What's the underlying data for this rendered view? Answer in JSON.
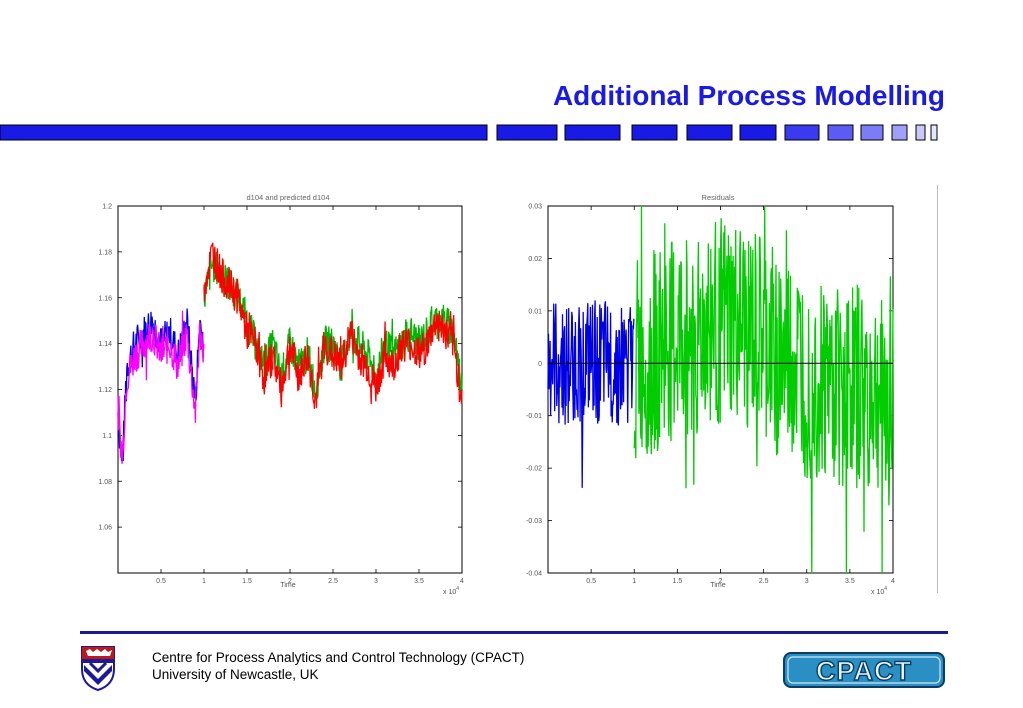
{
  "slide": {
    "title": "Additional Process Modelling",
    "footer_line1": "Centre for Process Analytics and Control Technology   (CPACT)",
    "footer_line2": "University of Newcastle, UK",
    "logo_text": "CPACT",
    "crest_icon": "university-crest-icon",
    "colors": {
      "title": "#1a1ae6",
      "bar": "#1a1ae6",
      "footer_rule": "#1a1a9a",
      "logo": "#2a8fc2"
    }
  },
  "chart_data": [
    {
      "type": "line",
      "title": "d104 and predicted d104",
      "xlabel": "Time",
      "x_multiplier": "x 10^4",
      "xlim": [
        0,
        4
      ],
      "ylim": [
        1.04,
        1.2
      ],
      "x_ticks": [
        "0.5",
        "1",
        "1.5",
        "2",
        "2.5",
        "3",
        "3.5",
        "4"
      ],
      "y_ticks": [
        "1.2",
        "1.18",
        "1.16",
        "1.14",
        "1.12",
        "1.1",
        "1.08",
        "1.06"
      ],
      "series_colors": [
        "#0000e6",
        "#ff00ff",
        "#00b400",
        "#ff0000"
      ],
      "series": [
        {
          "x": [
            0.0,
            0.05,
            0.1,
            0.2,
            0.3,
            0.4,
            0.5,
            0.6,
            0.7,
            0.8,
            0.9,
            0.95,
            1.0
          ],
          "values": [
            1.11,
            1.085,
            1.13,
            1.14,
            1.145,
            1.15,
            1.14,
            1.145,
            1.135,
            1.15,
            1.115,
            1.15,
            1.14
          ]
        },
        {
          "x": [
            0.0,
            0.05,
            0.1,
            0.2,
            0.3,
            0.4,
            0.5,
            0.6,
            0.7,
            0.8,
            0.9,
            0.95,
            1.0
          ],
          "values": [
            1.11,
            1.09,
            1.125,
            1.135,
            1.14,
            1.145,
            1.135,
            1.14,
            1.13,
            1.145,
            1.11,
            1.145,
            1.138
          ]
        },
        {
          "x": [
            1.0,
            1.1,
            1.2,
            1.3,
            1.4,
            1.5,
            1.6,
            1.7,
            1.8,
            1.9,
            2.0,
            2.1,
            2.2,
            2.3,
            2.4,
            2.5,
            2.6,
            2.7,
            2.8,
            2.9,
            3.0,
            3.1,
            3.2,
            3.3,
            3.4,
            3.5,
            3.6,
            3.7,
            3.8,
            3.9,
            4.0
          ],
          "values": [
            1.16,
            1.175,
            1.17,
            1.165,
            1.16,
            1.15,
            1.14,
            1.13,
            1.14,
            1.125,
            1.14,
            1.13,
            1.135,
            1.12,
            1.14,
            1.14,
            1.13,
            1.145,
            1.14,
            1.135,
            1.125,
            1.14,
            1.135,
            1.14,
            1.145,
            1.14,
            1.145,
            1.15,
            1.15,
            1.145,
            1.12
          ]
        },
        {
          "x": [
            1.0,
            1.1,
            1.2,
            1.3,
            1.4,
            1.5,
            1.6,
            1.7,
            1.8,
            1.9,
            2.0,
            2.1,
            2.2,
            2.3,
            2.4,
            2.5,
            2.6,
            2.7,
            2.8,
            2.9,
            3.0,
            3.1,
            3.2,
            3.3,
            3.4,
            3.5,
            3.6,
            3.7,
            3.8,
            3.9,
            4.0
          ],
          "values": [
            1.165,
            1.18,
            1.17,
            1.165,
            1.16,
            1.145,
            1.14,
            1.125,
            1.135,
            1.12,
            1.14,
            1.125,
            1.135,
            1.115,
            1.14,
            1.135,
            1.13,
            1.145,
            1.135,
            1.13,
            1.12,
            1.135,
            1.13,
            1.14,
            1.14,
            1.135,
            1.14,
            1.15,
            1.145,
            1.14,
            1.115
          ]
        }
      ]
    },
    {
      "type": "line",
      "title": "Residuals",
      "xlabel": "Time",
      "x_multiplier": "x 10^4",
      "xlim": [
        0,
        4
      ],
      "ylim": [
        -0.04,
        0.03
      ],
      "x_ticks": [
        "0.5",
        "1",
        "1.5",
        "2",
        "2.5",
        "3",
        "3.5",
        "4"
      ],
      "y_ticks": [
        "0.03",
        "0.02",
        "0.01",
        "0",
        "-0.01",
        "-0.02",
        "-0.03",
        "-0.04"
      ],
      "series_colors": [
        "#0000e6",
        "#00cc00",
        "#000000"
      ],
      "series": [
        {
          "x": [
            0.0,
            0.5,
            1.0
          ],
          "values": [
            0.0,
            0.0,
            0.0
          ],
          "amplitude": 0.012
        },
        {
          "x": [
            1.0,
            1.5,
            2.0,
            2.5,
            3.0,
            3.5,
            4.0
          ],
          "values": [
            0.0,
            0.004,
            0.008,
            0.004,
            -0.002,
            -0.004,
            -0.008
          ],
          "amplitude": 0.02
        },
        {
          "x": [
            0.0,
            4.0
          ],
          "values": [
            0.0,
            0.0
          ]
        }
      ]
    }
  ]
}
